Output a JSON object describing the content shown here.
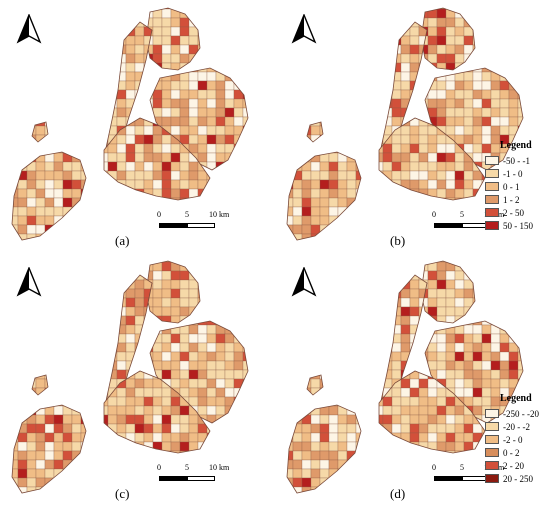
{
  "panels": [
    {
      "id": "a",
      "label": "(a)",
      "legend": null
    },
    {
      "id": "b",
      "label": "(b)",
      "legend": {
        "title": "Legend",
        "classes": [
          {
            "label": "-50 - -1",
            "color": "#fdf5e6"
          },
          {
            "label": "-1 - 0",
            "color": "#f6d9a8"
          },
          {
            "label": "0 - 1",
            "color": "#f0bd86"
          },
          {
            "label": "1 - 2",
            "color": "#df9a6a"
          },
          {
            "label": "2 - 50",
            "color": "#d2503a"
          },
          {
            "label": "50 - 150",
            "color": "#b41e1e"
          }
        ]
      }
    },
    {
      "id": "c",
      "label": "(c)",
      "legend": null
    },
    {
      "id": "d",
      "label": "(d)",
      "legend": {
        "title": "Legend",
        "classes": [
          {
            "label": "-250 - -20",
            "color": "#fdf5e6"
          },
          {
            "label": "-20 - -2",
            "color": "#f6d9a8"
          },
          {
            "label": "-2 - 0",
            "color": "#f0bd86"
          },
          {
            "label": "0 - 2",
            "color": "#d88e5c"
          },
          {
            "label": "2 - 20",
            "color": "#d2503a"
          },
          {
            "label": "20 - 250",
            "color": "#8b1a10"
          }
        ]
      }
    }
  ],
  "scale_bar": {
    "ticks": [
      "0",
      "5",
      "10 km"
    ]
  },
  "north_arrow": "north-arrow-icon",
  "colors": {
    "outline": "#7a4a3a",
    "land_light": "#f6d9a8",
    "land_mid": "#f0bd86",
    "land_dark": "#d2503a"
  }
}
